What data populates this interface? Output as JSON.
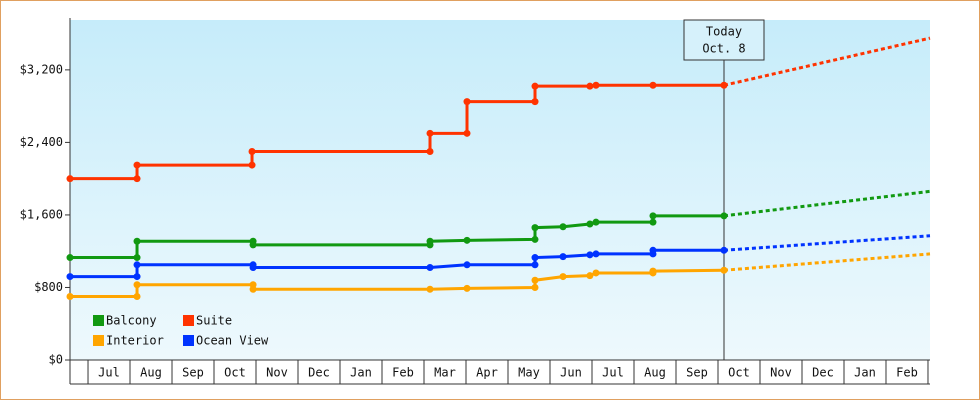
{
  "chart_data": {
    "type": "step-line",
    "xlim": [
      0.571,
      21.048
    ],
    "xticks": [
      {
        "value": 1.5,
        "label": "Jul"
      },
      {
        "value": 2.5,
        "label": "Aug"
      },
      {
        "value": 3.5,
        "label": "Sep"
      },
      {
        "value": 4.5,
        "label": "Oct"
      },
      {
        "value": 5.5,
        "label": "Nov"
      },
      {
        "value": 6.5,
        "label": "Dec"
      },
      {
        "value": 7.5,
        "label": "Jan"
      },
      {
        "value": 8.5,
        "label": "Feb"
      },
      {
        "value": 9.5,
        "label": "Mar"
      },
      {
        "value": 10.5,
        "label": "Apr"
      },
      {
        "value": 11.5,
        "label": "May"
      },
      {
        "value": 12.5,
        "label": "Jun"
      },
      {
        "value": 13.5,
        "label": "Jul"
      },
      {
        "value": 14.5,
        "label": "Aug"
      },
      {
        "value": 15.5,
        "label": "Sep"
      },
      {
        "value": 16.5,
        "label": "Oct"
      },
      {
        "value": 17.5,
        "label": "Nov"
      },
      {
        "value": 18.5,
        "label": "Dec"
      },
      {
        "value": 19.5,
        "label": "Jan"
      },
      {
        "value": 20.5,
        "label": "Feb"
      }
    ],
    "ylim": [
      0,
      3750
    ],
    "yticks": [
      {
        "value": 0,
        "label": "$0"
      },
      {
        "value": 800,
        "label": "$800"
      },
      {
        "value": 1600,
        "label": "$1,600"
      },
      {
        "value": 2400,
        "label": "$2,400"
      },
      {
        "value": 3200,
        "label": "$3,200"
      }
    ],
    "annotation": {
      "lines": [
        "Today",
        "Oct. 8"
      ],
      "x": 16.143
    },
    "legend": "lower left",
    "series": [
      {
        "name": "Balcony",
        "color": "#119911",
        "x": [
          0.571,
          2.167,
          2.167,
          4.93,
          4.93,
          9.143,
          9.143,
          10.024,
          11.643,
          11.643,
          12.31,
          12.95,
          13.095,
          14.452,
          14.452,
          16.143
        ],
        "values": [
          1130,
          1130,
          1310,
          1310,
          1270,
          1270,
          1310,
          1320,
          1330,
          1460,
          1470,
          1500,
          1520,
          1520,
          1590,
          1590
        ],
        "forecast": {
          "x": [
            16.143,
            21.048
          ],
          "values": [
            1590,
            1860
          ]
        }
      },
      {
        "name": "Suite",
        "color": "#ff3300",
        "x": [
          0.571,
          2.167,
          2.167,
          4.905,
          4.905,
          9.143,
          9.143,
          10.024,
          10.024,
          11.643,
          11.643,
          12.95,
          13.095,
          14.452,
          16.143
        ],
        "values": [
          2000,
          2000,
          2150,
          2150,
          2300,
          2300,
          2500,
          2500,
          2850,
          2850,
          3020,
          3020,
          3030,
          3030,
          3030
        ],
        "forecast": {
          "x": [
            16.143,
            21.048
          ],
          "values": [
            3030,
            3550
          ]
        }
      },
      {
        "name": "Interior",
        "color": "#ffa500",
        "x": [
          0.571,
          2.167,
          2.167,
          4.93,
          4.93,
          9.143,
          10.024,
          11.643,
          11.643,
          12.31,
          12.95,
          13.095,
          14.452,
          14.452,
          16.143
        ],
        "values": [
          700,
          700,
          830,
          830,
          780,
          780,
          790,
          800,
          880,
          920,
          930,
          960,
          960,
          980,
          990
        ],
        "forecast": {
          "x": [
            16.143,
            21.048
          ],
          "values": [
            990,
            1170
          ]
        }
      },
      {
        "name": "Ocean View",
        "color": "#0033ff",
        "x": [
          0.571,
          2.167,
          2.167,
          4.93,
          4.93,
          9.143,
          10.024,
          11.643,
          11.643,
          12.31,
          12.95,
          13.095,
          14.452,
          14.452,
          16.143
        ],
        "values": [
          920,
          920,
          1050,
          1050,
          1020,
          1020,
          1050,
          1050,
          1130,
          1140,
          1160,
          1170,
          1170,
          1210,
          1210
        ],
        "forecast": {
          "x": [
            16.143,
            21.048
          ],
          "values": [
            1210,
            1370
          ]
        }
      }
    ]
  }
}
